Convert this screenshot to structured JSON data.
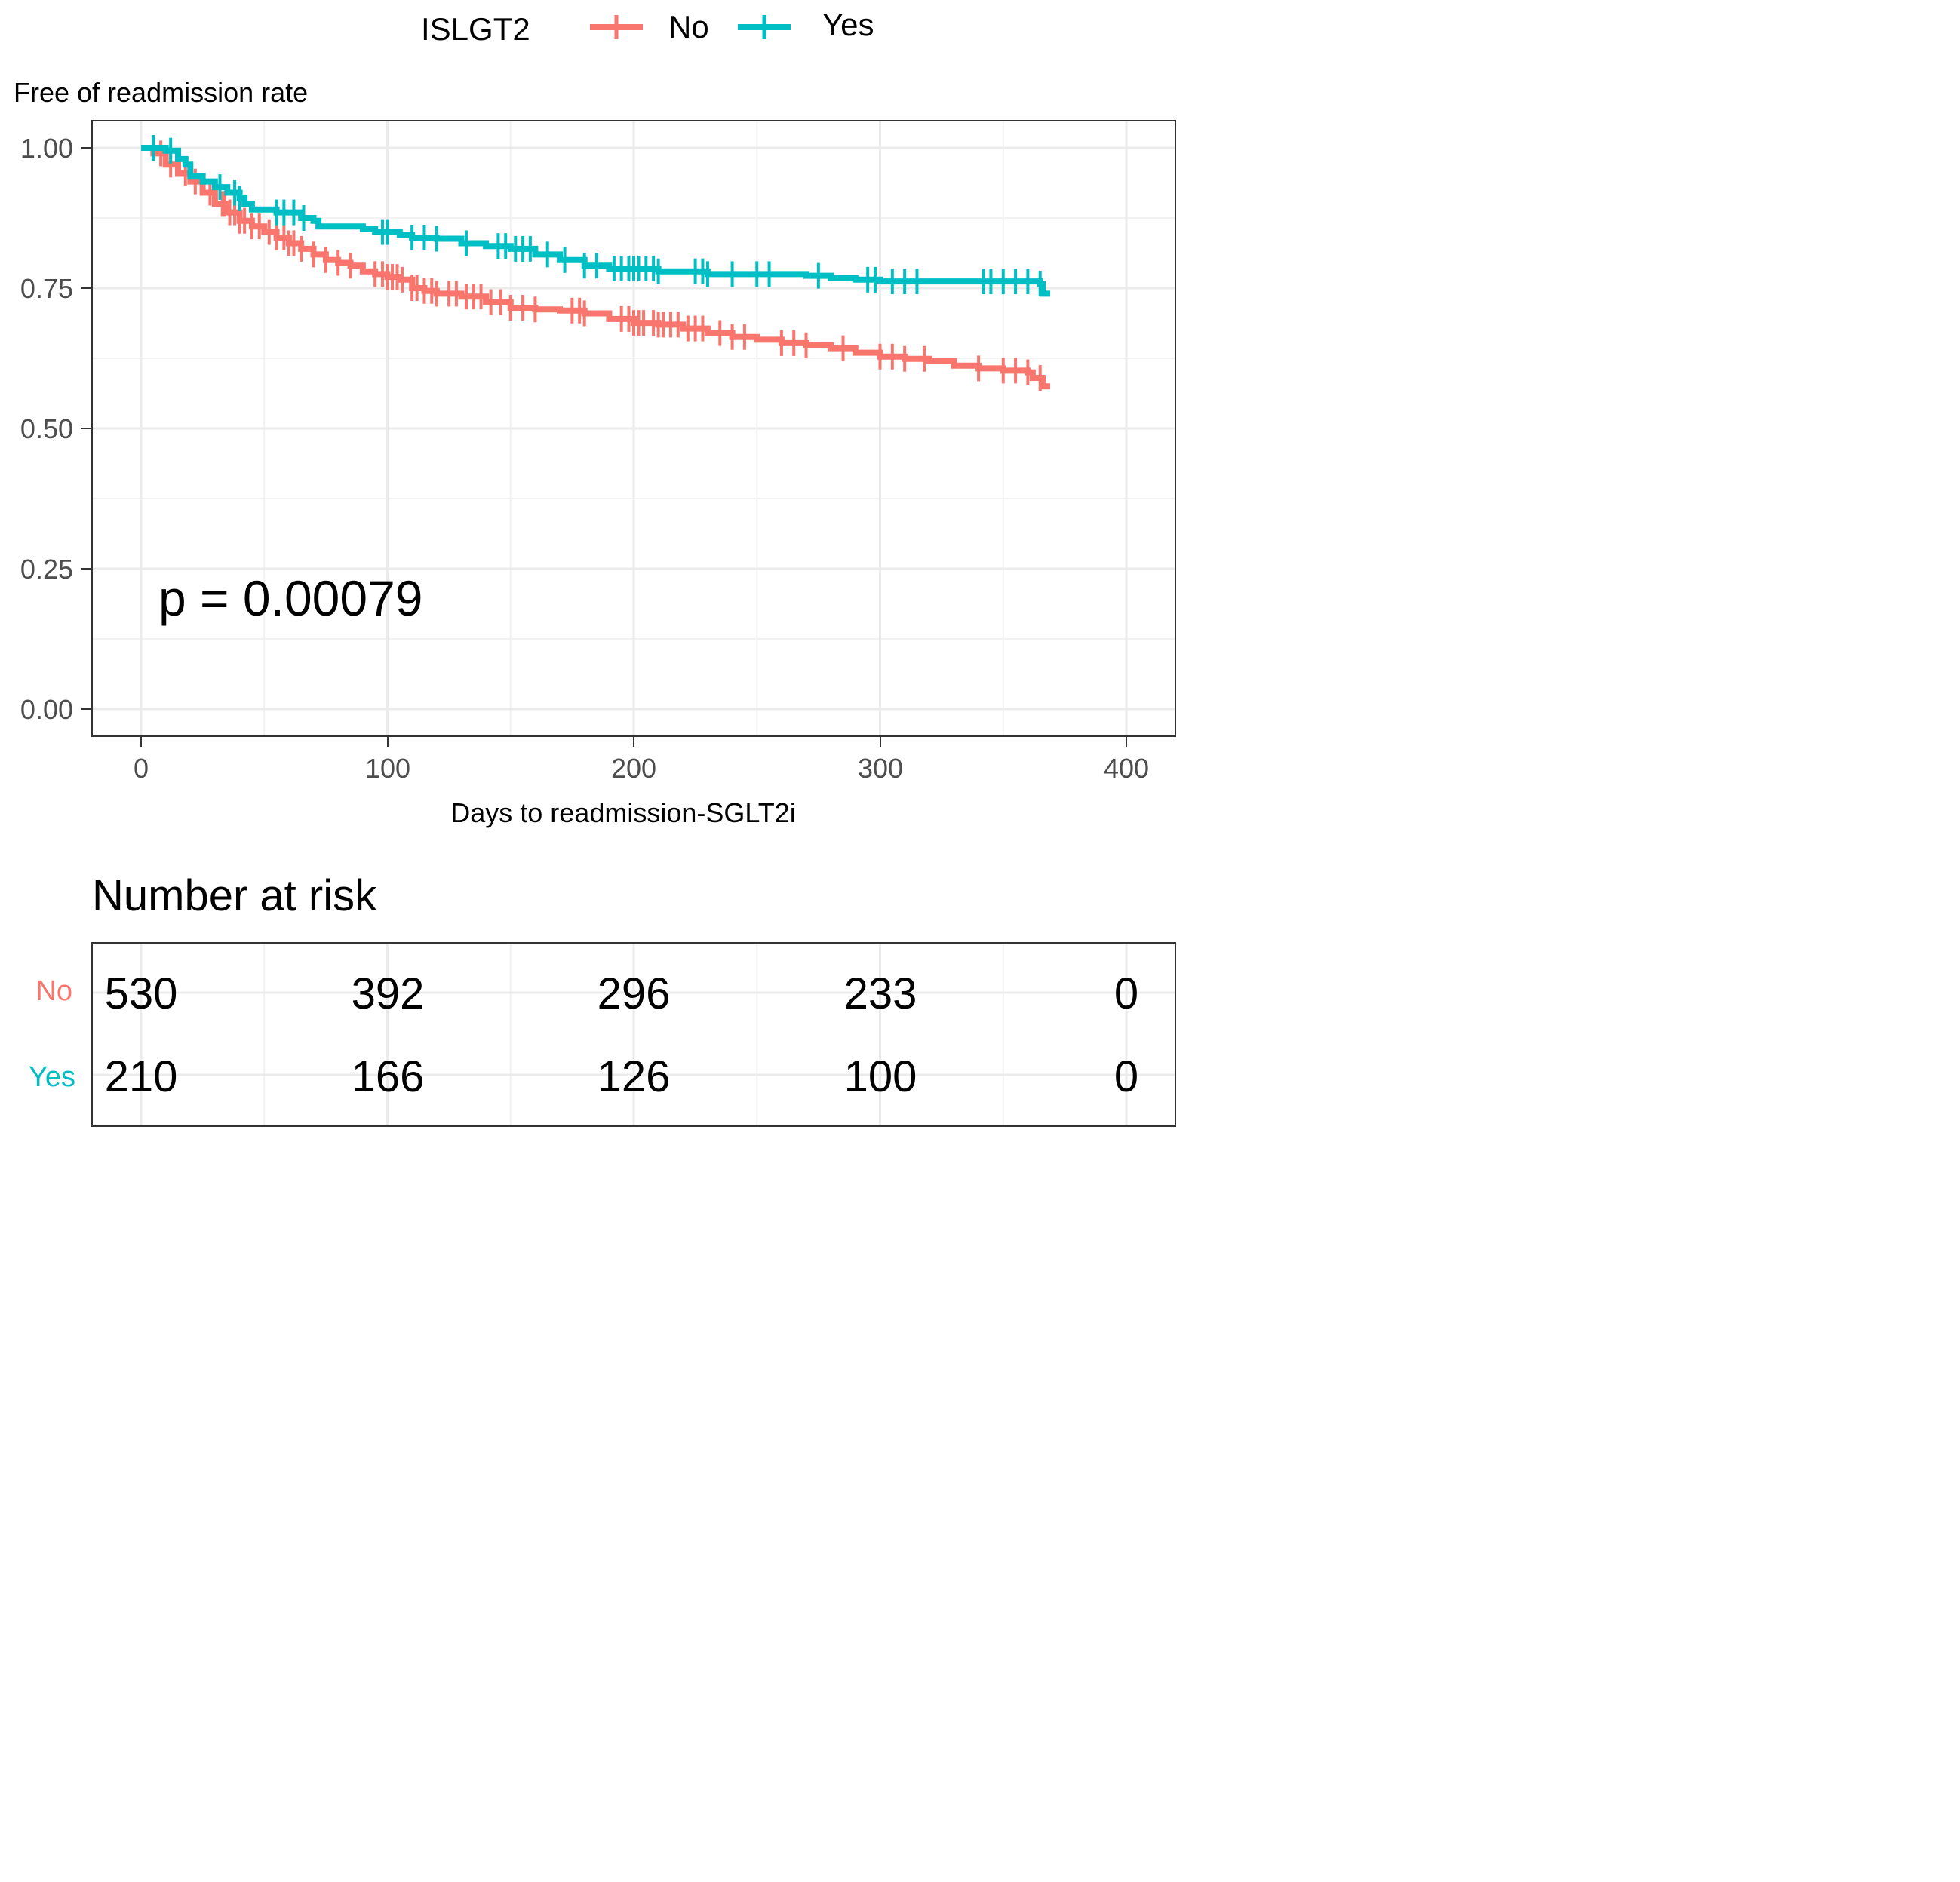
{
  "legend": {
    "title": "ISLGT2",
    "entries": [
      {
        "label": "No",
        "color": "#F8766D"
      },
      {
        "label": "Yes",
        "color": "#00BFC4"
      }
    ]
  },
  "chart_data": {
    "type": "line",
    "subtype": "kaplan-meier",
    "title": "",
    "ylabel": "Free of readmission rate",
    "xlabel": "Days to readmission-SGLT2i",
    "xlim": [
      0,
      400
    ],
    "ylim": [
      0,
      1
    ],
    "x_ticks": [
      "0",
      "100",
      "200",
      "300",
      "400"
    ],
    "y_ticks": [
      "0.00",
      "0.25",
      "0.50",
      "0.75",
      "1.00"
    ],
    "grid": true,
    "legend_position": "top",
    "annotation": "p = 0.00079",
    "series": [
      {
        "name": "No",
        "color": "#F8766D",
        "steps": [
          [
            0,
            1.0
          ],
          [
            5,
            0.99
          ],
          [
            10,
            0.97
          ],
          [
            15,
            0.955
          ],
          [
            20,
            0.94
          ],
          [
            25,
            0.92
          ],
          [
            30,
            0.9
          ],
          [
            35,
            0.885
          ],
          [
            40,
            0.87
          ],
          [
            45,
            0.86
          ],
          [
            50,
            0.85
          ],
          [
            55,
            0.84
          ],
          [
            60,
            0.83
          ],
          [
            65,
            0.82
          ],
          [
            70,
            0.81
          ],
          [
            75,
            0.8
          ],
          [
            80,
            0.795
          ],
          [
            85,
            0.79
          ],
          [
            90,
            0.78
          ],
          [
            95,
            0.775
          ],
          [
            100,
            0.77
          ],
          [
            105,
            0.765
          ],
          [
            110,
            0.75
          ],
          [
            115,
            0.745
          ],
          [
            120,
            0.74
          ],
          [
            130,
            0.735
          ],
          [
            140,
            0.725
          ],
          [
            150,
            0.715
          ],
          [
            160,
            0.712
          ],
          [
            170,
            0.71
          ],
          [
            180,
            0.705
          ],
          [
            190,
            0.695
          ],
          [
            200,
            0.688
          ],
          [
            210,
            0.685
          ],
          [
            220,
            0.678
          ],
          [
            230,
            0.67
          ],
          [
            240,
            0.663
          ],
          [
            250,
            0.658
          ],
          [
            260,
            0.652
          ],
          [
            270,
            0.648
          ],
          [
            280,
            0.643
          ],
          [
            290,
            0.635
          ],
          [
            300,
            0.628
          ],
          [
            310,
            0.624
          ],
          [
            320,
            0.62
          ],
          [
            330,
            0.612
          ],
          [
            340,
            0.607
          ],
          [
            350,
            0.603
          ],
          [
            360,
            0.6
          ],
          [
            362,
            0.59
          ],
          [
            366,
            0.575
          ]
        ],
        "censor_x": [
          8,
          12,
          18,
          22,
          28,
          33,
          34,
          36,
          38,
          40,
          42,
          45,
          48,
          52,
          55,
          58,
          60,
          62,
          65,
          70,
          75,
          80,
          85,
          95,
          98,
          100,
          102,
          104,
          106,
          110,
          112,
          115,
          118,
          120,
          125,
          128,
          132,
          135,
          138,
          142,
          146,
          150,
          155,
          160,
          175,
          178,
          180,
          195,
          198,
          200,
          202,
          204,
          208,
          210,
          212,
          215,
          218,
          222,
          225,
          228,
          235,
          240,
          245,
          260,
          265,
          270,
          285,
          300,
          305,
          310,
          318,
          340,
          350,
          355,
          360,
          365
        ]
      },
      {
        "name": "Yes",
        "color": "#00BFC4",
        "steps": [
          [
            0,
            1.0
          ],
          [
            10,
            0.995
          ],
          [
            15,
            0.98
          ],
          [
            18,
            0.97
          ],
          [
            20,
            0.95
          ],
          [
            25,
            0.94
          ],
          [
            30,
            0.93
          ],
          [
            35,
            0.92
          ],
          [
            40,
            0.91
          ],
          [
            42,
            0.9
          ],
          [
            45,
            0.89
          ],
          [
            55,
            0.885
          ],
          [
            65,
            0.875
          ],
          [
            70,
            0.87
          ],
          [
            72,
            0.86
          ],
          [
            90,
            0.855
          ],
          [
            95,
            0.85
          ],
          [
            105,
            0.845
          ],
          [
            110,
            0.84
          ],
          [
            120,
            0.838
          ],
          [
            130,
            0.83
          ],
          [
            140,
            0.825
          ],
          [
            150,
            0.82
          ],
          [
            160,
            0.81
          ],
          [
            170,
            0.8
          ],
          [
            180,
            0.79
          ],
          [
            190,
            0.785
          ],
          [
            210,
            0.78
          ],
          [
            230,
            0.775
          ],
          [
            270,
            0.772
          ],
          [
            280,
            0.768
          ],
          [
            290,
            0.765
          ],
          [
            300,
            0.762
          ],
          [
            365,
            0.758
          ],
          [
            366,
            0.74
          ]
        ],
        "censor_x": [
          5,
          12,
          32,
          38,
          40,
          55,
          58,
          62,
          66,
          98,
          100,
          110,
          115,
          120,
          132,
          145,
          148,
          152,
          155,
          158,
          165,
          172,
          180,
          185,
          192,
          195,
          198,
          200,
          202,
          205,
          208,
          210,
          225,
          228,
          230,
          240,
          250,
          255,
          275,
          295,
          298,
          305,
          310,
          315,
          342,
          345,
          350,
          355,
          360,
          365
        ]
      }
    ]
  },
  "risk_table": {
    "title": "Number at risk",
    "rows": [
      {
        "label": "No",
        "color": "#F8766D",
        "values": [
          "530",
          "392",
          "296",
          "233",
          "0"
        ]
      },
      {
        "label": "Yes",
        "color": "#00BFC4",
        "values": [
          "210",
          "166",
          "126",
          "100",
          "0"
        ]
      }
    ]
  }
}
